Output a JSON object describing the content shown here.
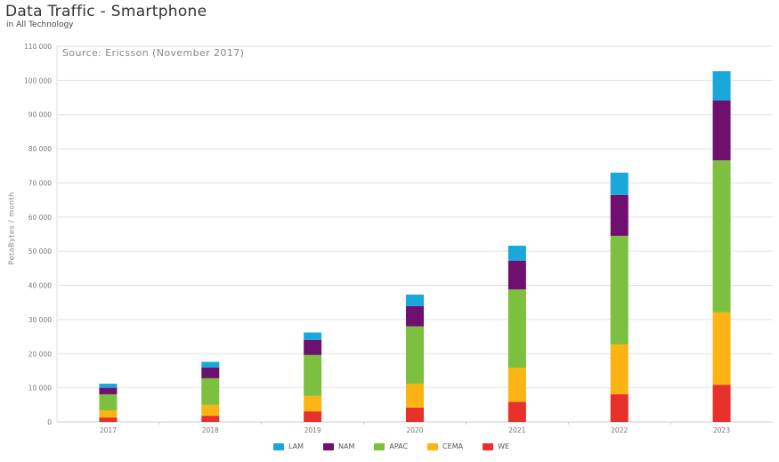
{
  "header": {
    "title": "Data Traffic - Smartphone",
    "subtitle": "in All Technology"
  },
  "source_note": "Source: Ericsson (November 2017)",
  "colors": {
    "LAM": "#1aa7d9",
    "NAM": "#6f0f6f",
    "APAC": "#7dbf3f",
    "CEMA": "#fcb415",
    "WE": "#e8312a"
  },
  "legend": [
    {
      "name": "LAM",
      "color": "#1aa7d9"
    },
    {
      "name": "NAM",
      "color": "#6f0f6f"
    },
    {
      "name": "APAC",
      "color": "#7dbf3f"
    },
    {
      "name": "CEMA",
      "color": "#fcb415"
    },
    {
      "name": "WE",
      "color": "#e8312a"
    }
  ],
  "chart_data": {
    "type": "bar",
    "stacked": true,
    "title": "Data Traffic - Smartphone",
    "subtitle": "in All Technology",
    "annotation": "Source: Ericsson (November 2017)",
    "xlabel": "",
    "ylabel": "PetaBytes / month",
    "ylim": [
      0,
      110000
    ],
    "yticks": [
      0,
      10000,
      20000,
      30000,
      40000,
      50000,
      60000,
      70000,
      80000,
      90000,
      100000,
      110000
    ],
    "ytick_labels": [
      "0",
      "10 000",
      "20 000",
      "30 000",
      "40 000",
      "50 000",
      "60 000",
      "70 000",
      "80 000",
      "90 000",
      "100 000",
      "110 000"
    ],
    "grid": true,
    "legend_position": "bottom",
    "categories": [
      "2017",
      "2018",
      "2019",
      "2020",
      "2021",
      "2022",
      "2023"
    ],
    "series": [
      {
        "name": "WE",
        "color": "#e8312a",
        "values": [
          1300,
          1800,
          3100,
          4200,
          5900,
          8100,
          10900
        ]
      },
      {
        "name": "CEMA",
        "color": "#fcb415",
        "values": [
          2100,
          3200,
          4500,
          7000,
          10000,
          14600,
          21200
        ]
      },
      {
        "name": "APAC",
        "color": "#7dbf3f",
        "values": [
          4700,
          7800,
          12000,
          16800,
          22900,
          31800,
          44500
        ]
      },
      {
        "name": "NAM",
        "color": "#6f0f6f",
        "values": [
          1900,
          3100,
          4400,
          5900,
          8400,
          12000,
          17500
        ]
      },
      {
        "name": "LAM",
        "color": "#1aa7d9",
        "values": [
          1200,
          1700,
          2200,
          3400,
          4400,
          6500,
          8600
        ]
      }
    ]
  }
}
